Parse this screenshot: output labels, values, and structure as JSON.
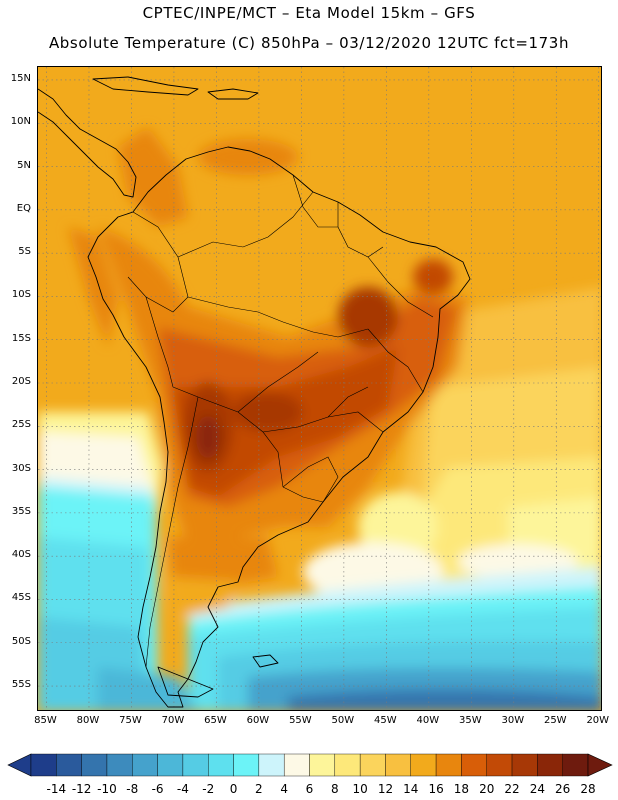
{
  "header": {
    "line1": "CPTEC/INPE/MCT –   Eta Model 15km – GFS",
    "line2": "Absolute Temperature (C) 850hPa – 03/12/2020 12UTC fct=173h"
  },
  "map": {
    "lat_labels": [
      "15N",
      "10N",
      "5N",
      "EQ",
      "5S",
      "10S",
      "15S",
      "20S",
      "25S",
      "30S",
      "35S",
      "40S",
      "45S",
      "50S",
      "55S"
    ],
    "lon_labels": [
      "85W",
      "80W",
      "75W",
      "70W",
      "65W",
      "60W",
      "55W",
      "50W",
      "45W",
      "40W",
      "35W",
      "30W",
      "25W",
      "20W"
    ],
    "lat_range": [
      -58,
      16.5
    ],
    "lon_range": [
      -86,
      -19.5
    ],
    "gridlines": "dotted"
  },
  "colorbar": {
    "labels": [
      "-14",
      "-12",
      "-10",
      "-8",
      "-6",
      "-4",
      "-2",
      "0",
      "2",
      "4",
      "6",
      "8",
      "10",
      "12",
      "14",
      "16",
      "18",
      "20",
      "22",
      "24",
      "26",
      "28"
    ],
    "colors": [
      "#1e3d8a",
      "#2a5a9c",
      "#3474ad",
      "#3d8bbd",
      "#45a2cc",
      "#4cb7d8",
      "#55cce4",
      "#5ee0ee",
      "#6cf3f7",
      "#cdf4fb",
      "#fdf9e6",
      "#fdf59a",
      "#fde87a",
      "#fbd45c",
      "#f8c040",
      "#f2aa1c",
      "#e8860e",
      "#d85e08",
      "#c24a06",
      "#a73806",
      "#8a2608",
      "#6e1b0e"
    ],
    "unit": "C"
  }
}
